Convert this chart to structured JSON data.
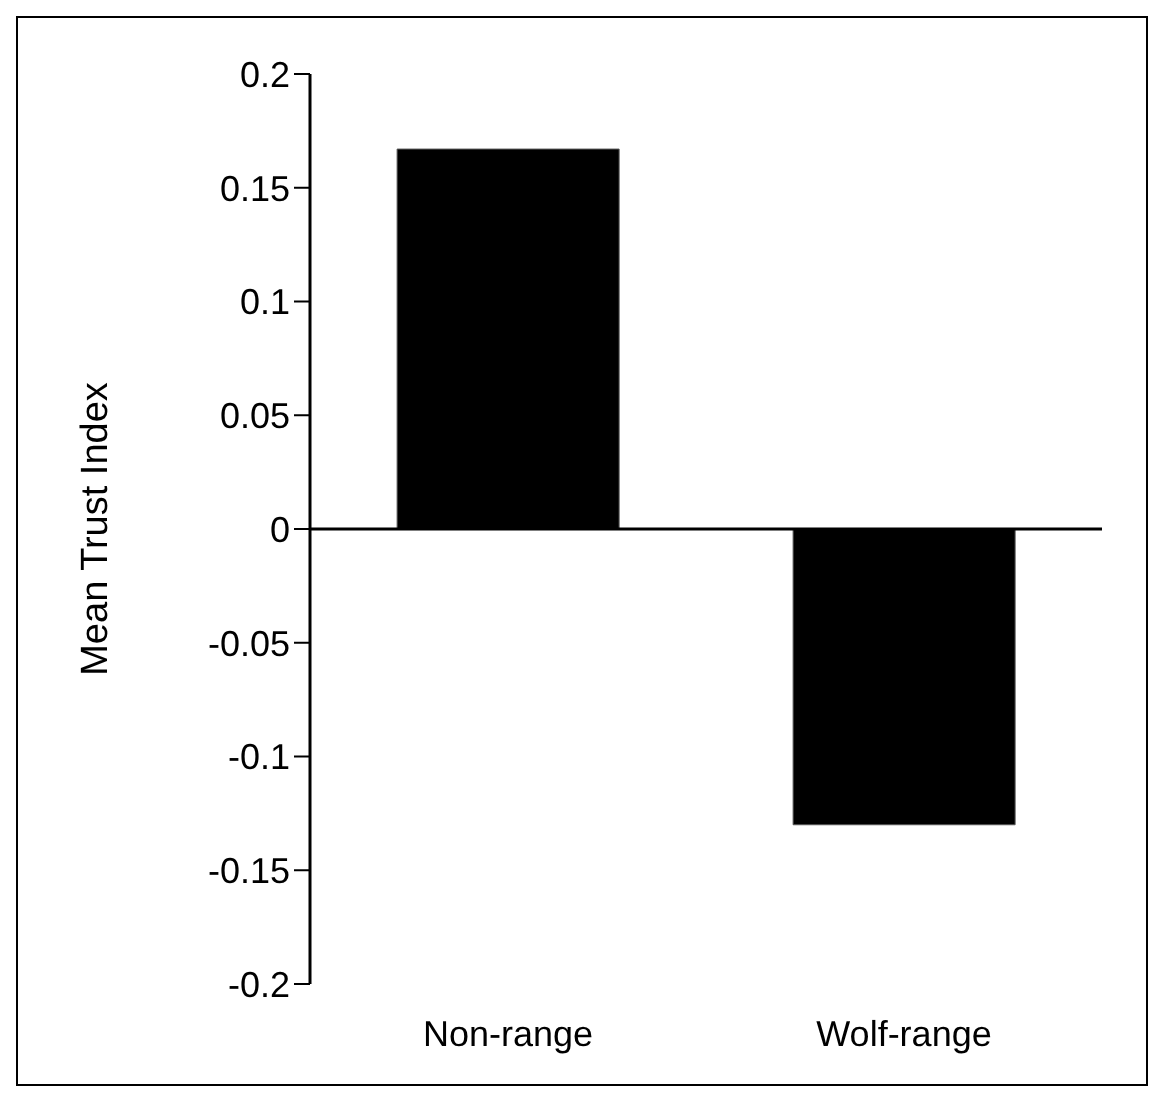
{
  "chart_data": {
    "type": "bar",
    "ylabel": "Mean Trust Index",
    "categories": [
      "Non-range",
      "Wolf-range"
    ],
    "values": [
      0.167,
      -0.13
    ],
    "color": "#000000",
    "ylim": [
      -0.2,
      0.2
    ],
    "yticks": [
      -0.2,
      -0.15,
      -0.1,
      -0.05,
      0,
      0.05,
      0.1,
      0.15,
      0.2
    ]
  }
}
